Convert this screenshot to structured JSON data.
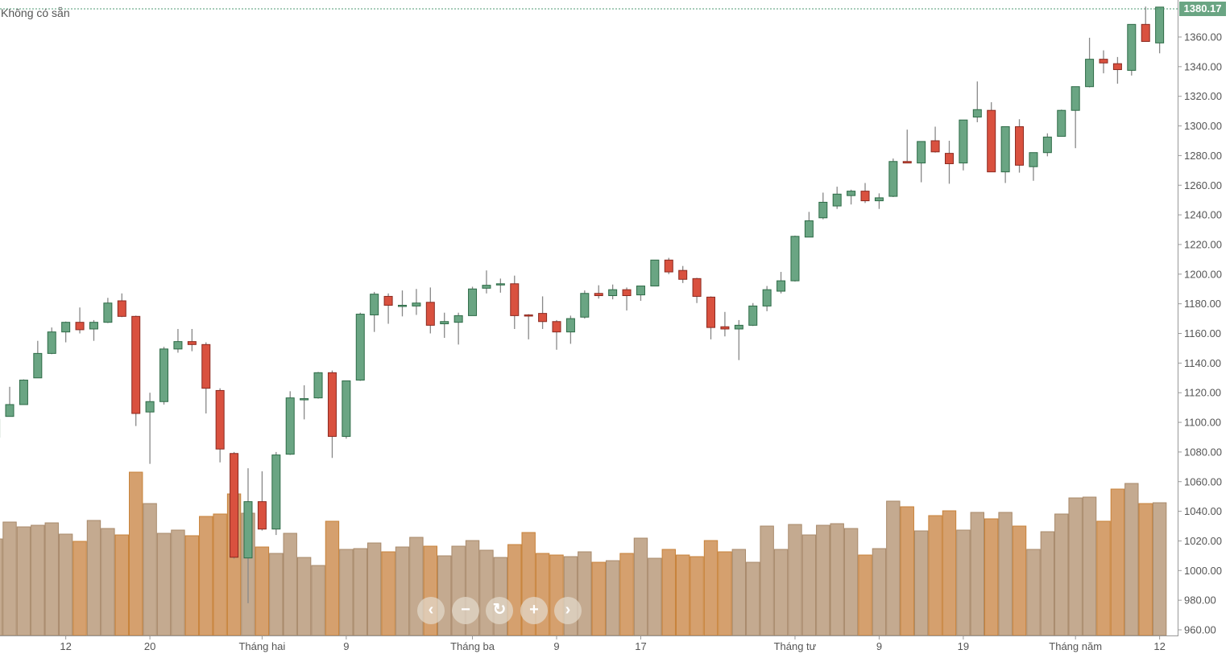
{
  "status_text": "Không có sẵn",
  "nav_buttons": [
    {
      "name": "scroll-left",
      "glyph": "‹"
    },
    {
      "name": "zoom-out",
      "glyph": "−"
    },
    {
      "name": "reset",
      "glyph": "↻"
    },
    {
      "name": "zoom-in",
      "glyph": "+"
    },
    {
      "name": "scroll-right",
      "glyph": "›"
    }
  ],
  "colors": {
    "up": "#6aa583",
    "up_border": "#2e6b47",
    "down": "#d9513f",
    "down_border": "#8b2a20",
    "vol_up": "#c4aa90",
    "vol_down": "#d5a06e",
    "last_price_line": "#4f9a73"
  },
  "chart_data": {
    "type": "candlestick",
    "last_price": "1380.17",
    "ylim": [
      950,
      1385
    ],
    "y_ticks": [
      "960.00",
      "980.00",
      "1000.00",
      "1020.00",
      "1040.00",
      "1060.00",
      "1080.00",
      "1100.00",
      "1120.00",
      "1140.00",
      "1160.00",
      "1180.00",
      "1200.00",
      "1220.00",
      "1240.00",
      "1260.00",
      "1280.00",
      "1300.00",
      "1320.00",
      "1340.00",
      "1360.00"
    ],
    "x_ticks": [
      {
        "index": 5,
        "label": "12"
      },
      {
        "index": 11,
        "label": "20"
      },
      {
        "index": 19,
        "label": "Tháng hai"
      },
      {
        "index": 25,
        "label": "9"
      },
      {
        "index": 34,
        "label": "Tháng ba"
      },
      {
        "index": 40,
        "label": "9"
      },
      {
        "index": 46,
        "label": "17"
      },
      {
        "index": 57,
        "label": "Tháng tư"
      },
      {
        "index": 63,
        "label": "9"
      },
      {
        "index": 69,
        "label": "19"
      },
      {
        "index": 77,
        "label": "Tháng năm"
      },
      {
        "index": 83,
        "label": "12"
      }
    ],
    "ohlc": [
      [
        1090,
        1103,
        1088,
        1102
      ],
      [
        1104,
        1124,
        1104,
        1112
      ],
      [
        1112,
        1129,
        1112,
        1128.5
      ],
      [
        1130,
        1155,
        1130,
        1146.5
      ],
      [
        1146.5,
        1164,
        1146,
        1161
      ],
      [
        1161,
        1168,
        1154,
        1167.5
      ],
      [
        1167.5,
        1177.5,
        1160,
        1162.5
      ],
      [
        1163,
        1169,
        1155,
        1167.5
      ],
      [
        1167.5,
        1184,
        1167,
        1180.5
      ],
      [
        1182,
        1187,
        1171,
        1171.5
      ],
      [
        1171.5,
        1172,
        1097.5,
        1106
      ],
      [
        1107,
        1120,
        1072,
        1114
      ],
      [
        1114,
        1151,
        1112,
        1149.5
      ],
      [
        1149.5,
        1163,
        1147,
        1154.5
      ],
      [
        1154.5,
        1163,
        1148,
        1152.5
      ],
      [
        1152.5,
        1154,
        1106,
        1123
      ],
      [
        1121.5,
        1123,
        1073,
        1082
      ],
      [
        1079,
        1080,
        1008,
        1009
      ],
      [
        1008.5,
        1069,
        978,
        1046.5
      ],
      [
        1046.5,
        1067,
        1027,
        1028
      ],
      [
        1028,
        1080,
        1024,
        1078
      ],
      [
        1078.5,
        1121,
        1078,
        1116.5
      ],
      [
        1116,
        1125,
        1102,
        1116
      ],
      [
        1116.5,
        1134,
        1116,
        1133.5
      ],
      [
        1133.5,
        1135,
        1076,
        1090.5
      ],
      [
        1090.5,
        1128,
        1089,
        1128
      ],
      [
        1128.5,
        1174,
        1128,
        1173
      ],
      [
        1172.5,
        1188,
        1161,
        1186.5
      ],
      [
        1185,
        1187,
        1166.5,
        1179
      ],
      [
        1179,
        1189,
        1171.5,
        1179
      ],
      [
        1178.5,
        1190,
        1172.5,
        1180.5
      ],
      [
        1181,
        1191,
        1160,
        1165.5
      ],
      [
        1166.5,
        1174,
        1157,
        1168
      ],
      [
        1167.5,
        1174,
        1152.5,
        1172
      ],
      [
        1172,
        1191.5,
        1172,
        1190
      ],
      [
        1190.5,
        1202.5,
        1187,
        1192.5
      ],
      [
        1193,
        1197,
        1187.5,
        1193.5
      ],
      [
        1193.5,
        1199,
        1163,
        1172
      ],
      [
        1172.5,
        1173,
        1156,
        1172
      ],
      [
        1173.5,
        1185,
        1163,
        1168
      ],
      [
        1168,
        1169,
        1149,
        1161
      ],
      [
        1161,
        1172,
        1153,
        1170
      ],
      [
        1171,
        1189,
        1170,
        1187
      ],
      [
        1187,
        1192.5,
        1183.5,
        1185.5
      ],
      [
        1185.5,
        1193,
        1183,
        1189.5
      ],
      [
        1189.5,
        1191,
        1175.5,
        1185.5
      ],
      [
        1186,
        1192,
        1182,
        1192
      ],
      [
        1192,
        1209.5,
        1192,
        1209.5
      ],
      [
        1209.5,
        1211,
        1200,
        1201.5
      ],
      [
        1202.5,
        1205.5,
        1194,
        1196.5
      ],
      [
        1197,
        1197.5,
        1180.5,
        1185
      ],
      [
        1184.5,
        1185,
        1156,
        1164
      ],
      [
        1164.5,
        1174.5,
        1158,
        1163
      ],
      [
        1163,
        1169,
        1142,
        1165.5
      ],
      [
        1165.5,
        1180.5,
        1165,
        1178.5
      ],
      [
        1178.5,
        1192,
        1175,
        1189.5
      ],
      [
        1188.5,
        1201.5,
        1187,
        1195.5
      ],
      [
        1195.5,
        1226,
        1195,
        1225.5
      ],
      [
        1225,
        1242,
        1225,
        1236
      ],
      [
        1238,
        1255,
        1237,
        1248.5
      ],
      [
        1246,
        1259,
        1244,
        1254
      ],
      [
        1253,
        1257,
        1247,
        1256
      ],
      [
        1256,
        1261.5,
        1248,
        1249.5
      ],
      [
        1249.5,
        1254.5,
        1244,
        1251.5
      ],
      [
        1252.5,
        1278,
        1252,
        1276
      ],
      [
        1276,
        1297.5,
        1275,
        1275
      ],
      [
        1275,
        1289.5,
        1262,
        1289.5
      ],
      [
        1290,
        1299.5,
        1282,
        1282.5
      ],
      [
        1281.5,
        1290,
        1261,
        1274.5
      ],
      [
        1275,
        1304,
        1270,
        1304
      ],
      [
        1306,
        1330,
        1302.5,
        1311
      ],
      [
        1310.5,
        1316,
        1269,
        1269
      ],
      [
        1269,
        1299.5,
        1261.5,
        1299.5
      ],
      [
        1299.5,
        1304.5,
        1268.5,
        1273.5
      ],
      [
        1272.5,
        1282,
        1263,
        1282
      ],
      [
        1282,
        1295,
        1279.5,
        1292.5
      ],
      [
        1293,
        1311,
        1293,
        1310.5
      ],
      [
        1310.5,
        1326.5,
        1285,
        1326.5
      ],
      [
        1326.5,
        1359.5,
        1326,
        1345
      ],
      [
        1345,
        1351,
        1335.5,
        1342.5
      ],
      [
        1342,
        1346.5,
        1328.5,
        1338
      ],
      [
        1337.5,
        1368.5,
        1334,
        1368.5
      ],
      [
        1368.5,
        1380.5,
        1357,
        1357
      ],
      [
        1356,
        1380.17,
        1349,
        1380.17
      ]
    ],
    "volume_relative": [
      120,
      141,
      135,
      137,
      140,
      126,
      117,
      143,
      133,
      125,
      203,
      164,
      127,
      131,
      124,
      148,
      151,
      176,
      152,
      110,
      102,
      127,
      97,
      87,
      142,
      107,
      108,
      115,
      104,
      110,
      122,
      111,
      99,
      111,
      118,
      106,
      97,
      113,
      128,
      102,
      100,
      98,
      104,
      91,
      93,
      102,
      121,
      96,
      107,
      100,
      98,
      118,
      104,
      107,
      91,
      136,
      107,
      138,
      125,
      137,
      139,
      133,
      100,
      108,
      167,
      160,
      130,
      149,
      155,
      131,
      153,
      145,
      153,
      136,
      107,
      129,
      151,
      171,
      172,
      142,
      182,
      189,
      164,
      165
    ]
  }
}
